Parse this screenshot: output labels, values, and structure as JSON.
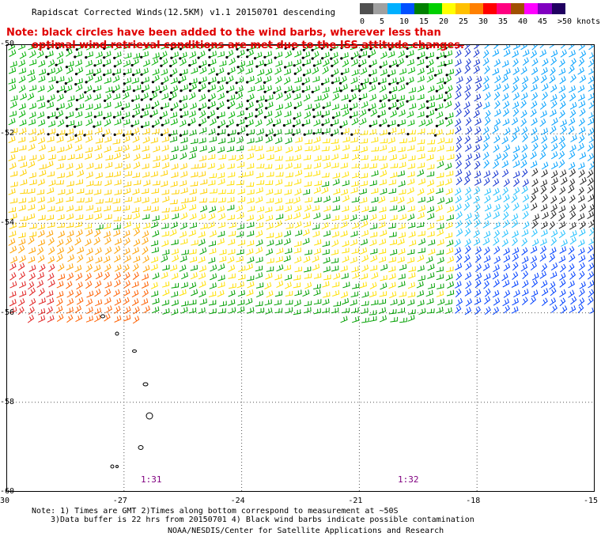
{
  "title": "Rapidscat Corrected Winds(12.5KM) v1.1 20150701 descending",
  "note_line1": "Note: black circles have been added to the wind barbs, wherever less than",
  "note_line2": "optimal wind retrieval conditions are met due to the ISS attitude changes.",
  "legend": {
    "colors": [
      "#505050",
      "#a0a0a0",
      "#00b0ff",
      "#0050ff",
      "#008000",
      "#00d000",
      "#ffff00",
      "#ffc000",
      "#ff8000",
      "#ff0000",
      "#ff0080",
      "#a05000",
      "#ff00ff",
      "#8000c0",
      "#200060"
    ],
    "labels": [
      "0",
      "5",
      "10",
      "15",
      "20",
      "25",
      "30",
      "35",
      "40",
      "45",
      ">50 knots"
    ]
  },
  "map": {
    "lon_ticks": [
      "-30",
      "-27",
      "-24",
      "-21",
      "-18",
      "-15"
    ],
    "lat_ticks": [
      "-50",
      "-52",
      "-54",
      "-56",
      "-58",
      "-60"
    ],
    "time_labels": [
      "1:31",
      "1:32"
    ],
    "grid": true
  },
  "footer": {
    "line1": "Note: 1) Times are GMT 2)Times along bottom correspond to measurement at ~50S",
    "line2": "3)Data buffer is 22 hrs from 20150701 4) Black wind barbs indicate possible contamination",
    "line3": "NOAA/NESDIS/Center for Satellite Applications and Research"
  }
}
